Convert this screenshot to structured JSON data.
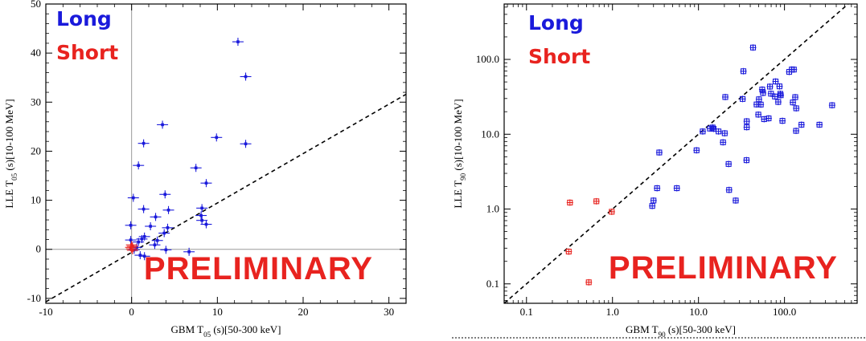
{
  "chart_data": [
    {
      "type": "scatter",
      "xlabel": "GBM T05 (s)[50-300 keV]",
      "xlabel_main": "GBM T",
      "xlabel_sub": "05",
      "xlabel_rest": " (s)[50-300 keV]",
      "ylabel": "LLE T05 (s)[10-100 MeV]",
      "ylabel_main": "LLE T",
      "ylabel_sub": "05",
      "ylabel_rest": " (s)[10-100 MeV]",
      "xlim": [
        -10,
        32
      ],
      "ylim": [
        -11,
        50
      ],
      "xscale": "linear",
      "yscale": "linear",
      "x_ticks": [
        "-10",
        "0",
        "10",
        "20",
        "30"
      ],
      "y_ticks": [
        "-10",
        "0",
        "10",
        "20",
        "30",
        "40",
        "50"
      ],
      "reference_lines": [
        "x=0",
        "y=0"
      ],
      "dashed_line": {
        "from": [
          -10,
          -10.7
        ],
        "to": [
          32,
          31.6
        ]
      },
      "legend": {
        "position": "top-left",
        "entries": [
          {
            "label": "Long",
            "color": "#1a1adb"
          },
          {
            "label": "Short",
            "color": "#e8231f"
          }
        ]
      },
      "annotation": "PRELIMINARY",
      "series": [
        {
          "name": "Long",
          "color": "#1a1adb",
          "points": [
            [
              12.4,
              42.3
            ],
            [
              13.3,
              35.2
            ],
            [
              13.3,
              21.5
            ],
            [
              9.9,
              22.8
            ],
            [
              7.5,
              16.6
            ],
            [
              8.7,
              13.5
            ],
            [
              8.2,
              8.4
            ],
            [
              8.1,
              6.9
            ],
            [
              8.2,
              5.9
            ],
            [
              8.7,
              5.1
            ],
            [
              3.6,
              25.4
            ],
            [
              1.4,
              21.6
            ],
            [
              0.8,
              17.1
            ],
            [
              0.2,
              10.5
            ],
            [
              1.4,
              8.2
            ],
            [
              3.9,
              11.2
            ],
            [
              4.3,
              8.0
            ],
            [
              4.2,
              4.4
            ],
            [
              3.8,
              3.3
            ],
            [
              2.8,
              6.6
            ],
            [
              2.2,
              4.7
            ],
            [
              3.0,
              1.8
            ],
            [
              2.7,
              0.9
            ],
            [
              1.5,
              2.6
            ],
            [
              1.2,
              2.1
            ],
            [
              0.8,
              1.5
            ],
            [
              1.0,
              -1.2
            ],
            [
              1.5,
              -1.4
            ],
            [
              4.0,
              -0.1
            ],
            [
              6.7,
              -0.5
            ],
            [
              0.6,
              0.4
            ],
            [
              -0.1,
              1.9
            ],
            [
              -0.1,
              4.9
            ],
            [
              0.3,
              -0.1
            ]
          ]
        },
        {
          "name": "Short",
          "color": "#e8231f",
          "points": [
            [
              -0.1,
              0.4
            ],
            [
              0.0,
              0.9
            ],
            [
              0.1,
              -0.2
            ],
            [
              0.0,
              0.1
            ],
            [
              0.1,
              0.6
            ]
          ]
        }
      ]
    },
    {
      "type": "scatter",
      "xlabel": "GBM T90 (s)[50-300 keV]",
      "xlabel_main": "GBM T",
      "xlabel_sub": "90",
      "xlabel_rest": " (s)[50-300 keV]",
      "ylabel": "LLE T90 (s)[10-100 MeV]",
      "ylabel_main": "LLE T",
      "ylabel_sub": "90",
      "ylabel_rest": " (s)[10-100 MeV]",
      "xlim": [
        0.055,
        700
      ],
      "ylim": [
        0.055,
        550
      ],
      "xscale": "log",
      "yscale": "log",
      "x_ticks": [
        "0.1",
        "1.0",
        "10.0",
        "100.0"
      ],
      "y_ticks": [
        "0.1",
        "1.0",
        "10.0",
        "100.0"
      ],
      "dashed_line": {
        "from": [
          0.055,
          0.055
        ],
        "to": [
          700,
          700
        ]
      },
      "legend": {
        "position": "top-left",
        "entries": [
          {
            "label": "Long",
            "color": "#1a1adb"
          },
          {
            "label": "Short",
            "color": "#e8231f"
          }
        ]
      },
      "annotation": "PRELIMINARY",
      "series": [
        {
          "name": "Long",
          "color": "#1a1adb",
          "points": [
            [
              3.5,
              5.7
            ],
            [
              3.3,
              1.9
            ],
            [
              2.9,
              1.1
            ],
            [
              3.0,
              1.3
            ],
            [
              5.6,
              1.9
            ],
            [
              9.5,
              6.1
            ],
            [
              11.2,
              10.9
            ],
            [
              13.6,
              11.9
            ],
            [
              14.6,
              12.3
            ],
            [
              15.0,
              11.8
            ],
            [
              17.1,
              10.9
            ],
            [
              20.2,
              10.3
            ],
            [
              19.3,
              7.8
            ],
            [
              20.5,
              31.4
            ],
            [
              22.4,
              4.0
            ],
            [
              22.7,
              1.8
            ],
            [
              27.1,
              1.3
            ],
            [
              32.6,
              29.6
            ],
            [
              33.3,
              69.5
            ],
            [
              36.4,
              14.9
            ],
            [
              36.4,
              12.4
            ],
            [
              36.2,
              4.5
            ],
            [
              43.1,
              144.0
            ],
            [
              47.4,
              25.0
            ],
            [
              49.7,
              18.3
            ],
            [
              50.5,
              29.3
            ],
            [
              53.0,
              24.9
            ],
            [
              55.1,
              39.6
            ],
            [
              56.3,
              35.6
            ],
            [
              58.0,
              15.9
            ],
            [
              65.4,
              16.3
            ],
            [
              67.8,
              43.3
            ],
            [
              69.7,
              34.8
            ],
            [
              77.5,
              31.9
            ],
            [
              78.8,
              50.7
            ],
            [
              84.6,
              27.0
            ],
            [
              87.6,
              43.6
            ],
            [
              89.5,
              34.7
            ],
            [
              90.5,
              33.2
            ],
            [
              94.7,
              15.1
            ],
            [
              113.5,
              68.1
            ],
            [
              121.8,
              73.4
            ],
            [
              125.2,
              26.6
            ],
            [
              128.6,
              73.2
            ],
            [
              133.4,
              31.3
            ],
            [
              137.0,
              22.2
            ],
            [
              136.4,
              11.1
            ],
            [
              157.6,
              13.4
            ],
            [
              255.0,
              13.4
            ],
            [
              358.0,
              24.4
            ]
          ]
        },
        {
          "name": "Short",
          "color": "#e8231f",
          "points": [
            [
              0.32,
              1.22
            ],
            [
              0.65,
              1.27
            ],
            [
              0.98,
              0.92
            ],
            [
              0.31,
              0.27
            ],
            [
              0.53,
              0.105
            ]
          ]
        }
      ]
    }
  ]
}
